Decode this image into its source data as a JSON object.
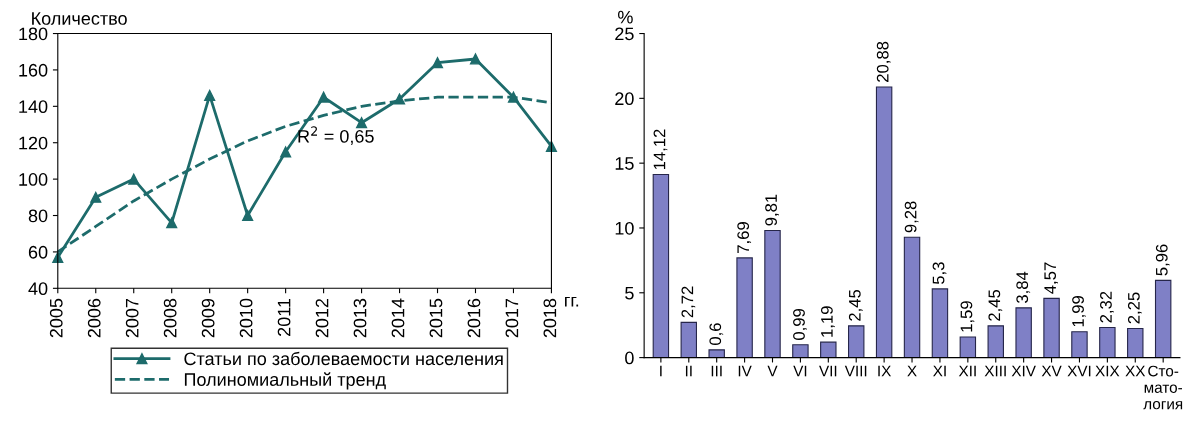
{
  "chart_data": [
    {
      "type": "line",
      "ylabel": "Количество",
      "x": [
        2005,
        2006,
        2007,
        2008,
        2009,
        2010,
        2011,
        2012,
        2013,
        2014,
        2015,
        2016,
        2017,
        2018
      ],
      "series": [
        {
          "name": "Статьи по заболеваемости населения",
          "color": "#1d6b6b",
          "marker": "triangle",
          "line_style": "solid",
          "values": [
            57,
            90,
            100,
            76,
            146,
            80,
            115,
            145,
            131,
            144,
            164,
            166,
            145,
            118
          ]
        },
        {
          "name": "Полиномиальный тренд",
          "type": "line",
          "color": "#1d6b6b",
          "marker": "none",
          "line_style": "dashed",
          "x": [
            2005,
            2006,
            2007,
            2008,
            2009,
            2010,
            2011,
            2012,
            2013,
            2014,
            2015,
            2016,
            2017,
            2018
          ],
          "values": [
            60,
            74,
            88,
            100,
            111,
            121,
            129,
            135,
            140,
            143,
            145,
            145,
            145,
            142
          ]
        }
      ],
      "xlim": [
        2005,
        2018
      ],
      "xticks": [
        2005,
        2006,
        2007,
        2008,
        2009,
        2010,
        2011,
        2012,
        2013,
        2014,
        2015,
        2016,
        2017,
        2018
      ],
      "ylim": [
        40,
        180
      ],
      "yticks": [
        40,
        60,
        80,
        100,
        120,
        140,
        160,
        180
      ],
      "annotations": [
        {
          "text": "R$^{2}$ = 0,65",
          "x": 2011.3,
          "y": 120
        },
        "гг."
      ],
      "grid": false,
      "legend": "bottom"
    },
    {
      "type": "bar",
      "ylabel": "%",
      "categories": [
        "I",
        "II",
        "III",
        "IV",
        "V",
        "VI",
        "VII",
        "VIII",
        "IX",
        "X",
        "XI",
        "XII",
        "XIII",
        "XIV",
        "XV",
        "XVI",
        "XIX",
        "XX",
        "Сто-\nмато-\nлогия"
      ],
      "values": [
        14.12,
        2.72,
        0.6,
        7.69,
        9.81,
        0.99,
        1.19,
        2.45,
        20.88,
        9.28,
        5.3,
        1.59,
        2.45,
        3.84,
        4.57,
        1.99,
        2.32,
        2.25,
        5.96
      ],
      "value_labels": [
        "14,12",
        "2,72",
        "0,6",
        "7,69",
        "9,81",
        "0,99",
        "1,19",
        "2,45",
        "20,88",
        "9,28",
        "5,3",
        "1,59",
        "2,45",
        "3,84",
        "4,57",
        "1,99",
        "2,32",
        "2,25",
        "5,96"
      ],
      "color": "#7f80c6",
      "ylim": [
        0,
        25
      ],
      "yticks": [
        0,
        5,
        10,
        15,
        20,
        25
      ],
      "grid": false,
      "legend": false
    }
  ]
}
